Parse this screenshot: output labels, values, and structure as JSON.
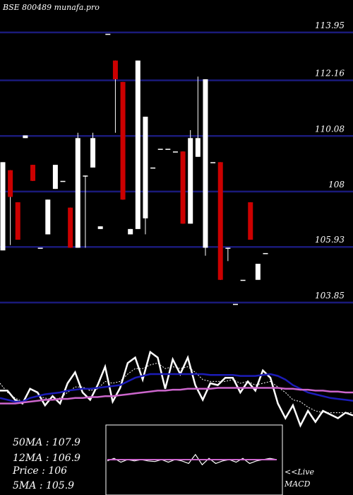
{
  "header": {
    "title": "BSE 800489 munafa.pro"
  },
  "readouts": {
    "ma50": "50MA : 107.9",
    "ma12": "12MA : 106.9",
    "price": "Price   : 106",
    "ma5": "5MA : 105.9"
  },
  "macd_panel": {
    "live_label": "<<Live",
    "macd_label": "MACD"
  },
  "colors": {
    "background": "#000000",
    "gridline": "#1a1a7a",
    "up_candle": "#ffffff",
    "down_candle": "#cc0000",
    "ma_fast": "#ffffff",
    "ma_mid": "#1c1cb8",
    "ma_slow": "#cc66cc",
    "macd_line": "#cc66cc"
  },
  "chart_data": {
    "type": "candlestick",
    "ylim": [
      103.0,
      114.9
    ],
    "yticks": [
      "113.95",
      "112.16",
      "110.08",
      "108",
      "105.93",
      "103.85"
    ],
    "candles": [
      {
        "open": 109.1,
        "close": 105.8,
        "high": 109.1,
        "low": 105.8,
        "dir": "up"
      },
      {
        "open": 108.8,
        "close": 107.8,
        "high": 108.8,
        "low": 106.0,
        "dir": "down"
      },
      {
        "open": 107.6,
        "close": 106.2,
        "high": 107.6,
        "low": 106.2,
        "dir": "down"
      },
      {
        "open": 110.1,
        "close": 110.0,
        "high": 110.1,
        "low": 110.0,
        "dir": "up"
      },
      {
        "open": 109.0,
        "close": 108.4,
        "high": 109.0,
        "low": 108.4,
        "dir": "down"
      },
      {
        "open": 105.9,
        "close": 105.9,
        "high": 105.9,
        "low": 105.9,
        "dir": "up"
      },
      {
        "open": 106.4,
        "close": 107.7,
        "high": 107.7,
        "low": 106.4,
        "dir": "up"
      },
      {
        "open": 108.1,
        "close": 109.0,
        "high": 109.0,
        "low": 108.1,
        "dir": "up"
      },
      {
        "open": 108.4,
        "close": 108.4,
        "high": 108.4,
        "low": 108.4,
        "dir": "up"
      },
      {
        "open": 107.4,
        "close": 105.9,
        "high": 107.4,
        "low": 105.9,
        "dir": "down"
      },
      {
        "open": 105.9,
        "close": 110.0,
        "high": 110.2,
        "low": 105.9,
        "dir": "up"
      },
      {
        "open": 108.6,
        "close": 108.6,
        "high": 108.6,
        "low": 105.9,
        "dir": "up"
      },
      {
        "open": 108.9,
        "close": 110.0,
        "high": 110.2,
        "low": 108.9,
        "dir": "up"
      },
      {
        "open": 106.6,
        "close": 106.7,
        "high": 106.7,
        "low": 106.6,
        "dir": "up"
      },
      {
        "open": 113.9,
        "close": 113.9,
        "high": 113.9,
        "low": 113.9,
        "dir": "up"
      },
      {
        "open": 112.9,
        "close": 112.2,
        "high": 112.9,
        "low": 110.2,
        "dir": "down"
      },
      {
        "open": 112.1,
        "close": 107.7,
        "high": 112.1,
        "low": 107.7,
        "dir": "down"
      },
      {
        "open": 106.6,
        "close": 106.4,
        "high": 106.6,
        "low": 106.4,
        "dir": "up"
      },
      {
        "open": 106.6,
        "close": 112.9,
        "high": 112.9,
        "low": 106.6,
        "dir": "up"
      },
      {
        "open": 107.0,
        "close": 110.8,
        "high": 110.8,
        "low": 106.4,
        "dir": "up"
      },
      {
        "open": 108.9,
        "close": 108.9,
        "high": 108.9,
        "low": 108.9,
        "dir": "up"
      },
      {
        "open": 109.6,
        "close": 109.6,
        "high": 109.6,
        "low": 109.6,
        "dir": "up"
      },
      {
        "open": 109.6,
        "close": 109.6,
        "high": 109.6,
        "low": 109.6,
        "dir": "up"
      },
      {
        "open": 109.5,
        "close": 109.5,
        "high": 109.5,
        "low": 109.5,
        "dir": "up"
      },
      {
        "open": 109.5,
        "close": 106.8,
        "high": 109.5,
        "low": 106.8,
        "dir": "down"
      },
      {
        "open": 106.8,
        "close": 110.0,
        "high": 110.3,
        "low": 106.8,
        "dir": "up"
      },
      {
        "open": 110.0,
        "close": 109.3,
        "high": 112.3,
        "low": 109.3,
        "dir": "up"
      },
      {
        "open": 105.9,
        "close": 112.2,
        "high": 112.2,
        "low": 105.6,
        "dir": "up"
      },
      {
        "open": 109.1,
        "close": 109.1,
        "high": 109.1,
        "low": 109.1,
        "dir": "up"
      },
      {
        "open": 109.1,
        "close": 104.7,
        "high": 109.1,
        "low": 104.7,
        "dir": "down"
      },
      {
        "open": 105.9,
        "close": 105.9,
        "high": 105.9,
        "low": 105.4,
        "dir": "up"
      },
      {
        "open": 103.8,
        "close": 103.8,
        "high": 103.8,
        "low": 103.8,
        "dir": "up"
      },
      {
        "open": 104.7,
        "close": 104.7,
        "high": 104.7,
        "low": 104.7,
        "dir": "up"
      },
      {
        "open": 107.6,
        "close": 106.2,
        "high": 107.6,
        "low": 106.2,
        "dir": "down"
      },
      {
        "open": 104.7,
        "close": 105.3,
        "high": 105.3,
        "low": 104.7,
        "dir": "up"
      },
      {
        "open": 105.7,
        "close": 105.7,
        "high": 105.7,
        "low": 105.7,
        "dir": "up"
      }
    ],
    "indicator_panel": {
      "series": [
        {
          "key": "osc_white",
          "color": "#ffffff",
          "values": [
            52,
            52,
            42,
            38,
            54,
            50,
            36,
            46,
            38,
            60,
            72,
            50,
            42,
            58,
            78,
            40,
            55,
            82,
            88,
            64,
            94,
            88,
            54,
            86,
            70,
            88,
            58,
            42,
            60,
            58,
            66,
            66,
            50,
            62,
            52,
            74,
            66,
            38,
            22,
            36,
            14,
            30,
            18,
            30,
            26,
            22,
            28,
            25
          ]
        },
        {
          "key": "osc_dotted",
          "color": "#ffffff",
          "values": [
            60,
            50,
            44,
            40,
            44,
            46,
            44,
            42,
            44,
            50,
            56,
            56,
            52,
            54,
            62,
            60,
            62,
            70,
            76,
            76,
            80,
            82,
            76,
            78,
            76,
            78,
            72,
            64,
            62,
            62,
            62,
            64,
            60,
            62,
            58,
            60,
            62,
            56,
            50,
            42,
            40,
            34,
            30,
            28,
            28,
            28,
            28,
            28
          ]
        },
        {
          "key": "ma_blue",
          "color": "#1c1cb8",
          "values": [
            44,
            42,
            40,
            40,
            44,
            46,
            48,
            49,
            50,
            52,
            53,
            54,
            54,
            55,
            56,
            57,
            58,
            62,
            66,
            68,
            70,
            70,
            70,
            70,
            70,
            70,
            70,
            70,
            69,
            69,
            69,
            69,
            68,
            68,
            68,
            69,
            70,
            68,
            64,
            58,
            54,
            50,
            48,
            46,
            44,
            43,
            42,
            41
          ]
        },
        {
          "key": "ma_purple",
          "color": "#cc66cc",
          "values": [
            38,
            38,
            38,
            39,
            40,
            41,
            42,
            42,
            43,
            43,
            44,
            44,
            45,
            45,
            46,
            46,
            47,
            48,
            49,
            50,
            51,
            52,
            52,
            53,
            53,
            54,
            54,
            54,
            54,
            55,
            55,
            55,
            55,
            55,
            55,
            55,
            55,
            55,
            54,
            54,
            53,
            53,
            52,
            52,
            51,
            51,
            50,
            50
          ]
        }
      ]
    },
    "macd_panel": {
      "series": [
        {
          "key": "macd_white",
          "color": "#ffffff",
          "values": [
            48,
            52,
            46,
            50,
            48,
            50,
            48,
            47,
            50,
            46,
            50,
            48,
            44,
            58,
            42,
            52,
            44,
            48,
            50,
            46,
            52,
            44,
            48,
            50,
            52,
            50
          ]
        },
        {
          "key": "macd_purple",
          "color": "#cc66cc",
          "values": [
            50,
            50,
            50,
            50,
            50,
            50,
            50,
            50,
            50,
            50,
            50,
            50,
            50,
            50,
            50,
            50,
            50,
            50,
            50,
            50,
            50,
            50,
            50,
            50,
            50,
            50
          ]
        }
      ]
    }
  }
}
